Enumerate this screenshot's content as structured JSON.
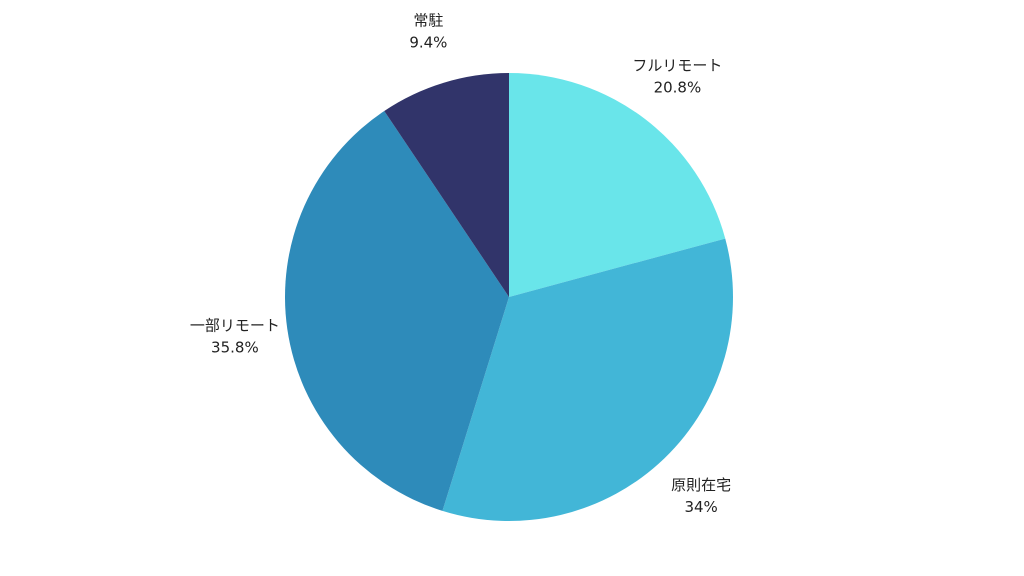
{
  "chart_data": {
    "type": "pie",
    "categories": [
      "フルリモート",
      "原則在宅",
      "一部リモート",
      "常駐"
    ],
    "values": [
      20.8,
      34,
      35.8,
      9.4
    ],
    "value_labels": [
      "20.8%",
      "34%",
      "35.8%",
      "9.4%"
    ],
    "colors": [
      "#69e5ea",
      "#42b6d7",
      "#2e8bba",
      "#31346a"
    ]
  }
}
